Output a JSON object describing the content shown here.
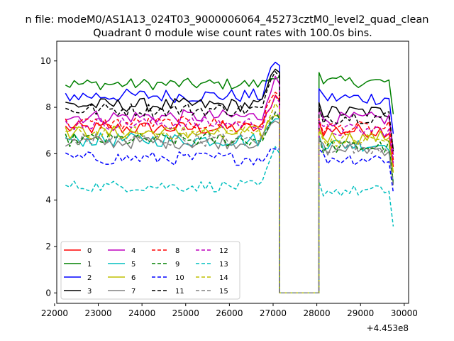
{
  "figure": {
    "suptitle": "n file: modeM0/AS1A13_024T03_9000006064_45273cztM0_level2_quad_clean"
  },
  "chart_data": {
    "type": "line",
    "title": "Quadrant 0 module wise count rates with 100.0s bins.",
    "xlabel": "",
    "ylabel": "",
    "x_offset_label": "+4.453e8",
    "xlim": [
      22050,
      30100
    ],
    "ylim": [
      -0.45,
      10.85
    ],
    "xticks": [
      22000,
      23000,
      24000,
      25000,
      26000,
      27000,
      28000,
      29000,
      30000
    ],
    "yticks": [
      0,
      2,
      4,
      6,
      8,
      10
    ],
    "grid": false,
    "legend_position": "lower-left",
    "legend_columns": 4,
    "x_segments": [
      {
        "start": 22250,
        "end": 27150,
        "step": 100
      },
      {
        "start": 28050,
        "end": 29750,
        "step": 100
      }
    ],
    "zero_segment": {
      "start": 27150,
      "end": 28050
    },
    "series": [
      {
        "name": "0",
        "color": "#ff0000",
        "dash": "solid",
        "level_a": 7.1,
        "level_b": 7.0,
        "peak": 8.3,
        "noise": 0.3
      },
      {
        "name": "1",
        "color": "#008000",
        "dash": "solid",
        "level_a": 9.0,
        "level_b": 9.1,
        "peak": 9.3,
        "noise": 0.25
      },
      {
        "name": "2",
        "color": "#0000ff",
        "dash": "solid",
        "level_a": 8.5,
        "level_b": 8.4,
        "peak": 9.8,
        "noise": 0.3
      },
      {
        "name": "3",
        "color": "#000000",
        "dash": "solid",
        "level_a": 8.1,
        "level_b": 7.8,
        "peak": 9.5,
        "noise": 0.3
      },
      {
        "name": "4",
        "color": "#bf00bf",
        "dash": "solid",
        "level_a": 7.6,
        "level_b": 7.5,
        "peak": 9.0,
        "noise": 0.3
      },
      {
        "name": "5",
        "color": "#00bfbf",
        "dash": "solid",
        "level_a": 6.6,
        "level_b": 6.4,
        "peak": 7.5,
        "noise": 0.3
      },
      {
        "name": "6",
        "color": "#bfbf00",
        "dash": "solid",
        "level_a": 6.9,
        "level_b": 6.7,
        "peak": 7.6,
        "noise": 0.3
      },
      {
        "name": "7",
        "color": "#808080",
        "dash": "solid",
        "level_a": 6.5,
        "level_b": 6.2,
        "peak": 7.3,
        "noise": 0.3
      },
      {
        "name": "8",
        "color": "#ff0000",
        "dash": "dashed",
        "level_a": 7.3,
        "level_b": 7.1,
        "peak": 8.5,
        "noise": 0.3
      },
      {
        "name": "9",
        "color": "#008000",
        "dash": "dashed",
        "level_a": 6.6,
        "level_b": 6.3,
        "peak": 7.5,
        "noise": 0.3
      },
      {
        "name": "10",
        "color": "#0000ff",
        "dash": "dashed",
        "level_a": 5.8,
        "level_b": 5.8,
        "peak": 6.2,
        "noise": 0.3
      },
      {
        "name": "11",
        "color": "#000000",
        "dash": "dashed",
        "level_a": 7.9,
        "level_b": 7.6,
        "peak": 9.3,
        "noise": 0.3
      },
      {
        "name": "12",
        "color": "#bf00bf",
        "dash": "dashed",
        "level_a": 7.3,
        "level_b": 7.0,
        "peak": 8.2,
        "noise": 0.3
      },
      {
        "name": "13",
        "color": "#00bfbf",
        "dash": "dashed",
        "level_a": 4.6,
        "level_b": 4.4,
        "peak": 6.0,
        "noise": 0.25
      },
      {
        "name": "14",
        "color": "#bfbf00",
        "dash": "dashed",
        "level_a": 6.9,
        "level_b": 6.6,
        "peak": 7.9,
        "noise": 0.3
      },
      {
        "name": "15",
        "color": "#808080",
        "dash": "dashed",
        "level_a": 6.6,
        "level_b": 6.3,
        "peak": 7.6,
        "noise": 0.3
      }
    ]
  }
}
